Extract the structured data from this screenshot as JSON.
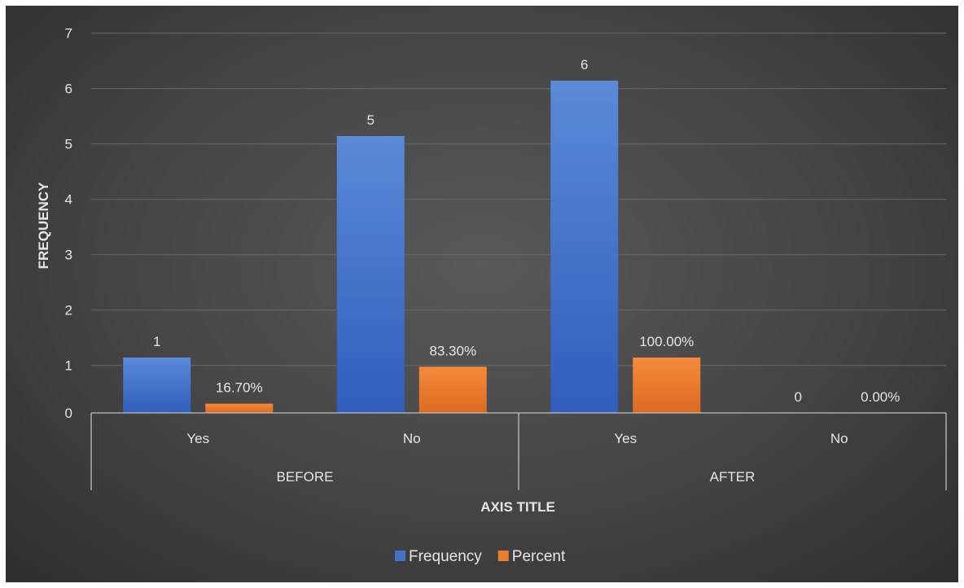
{
  "chart_data": {
    "type": "bar",
    "groups": [
      {
        "label": "BEFORE",
        "categories": [
          "Yes",
          "No"
        ]
      },
      {
        "label": "AFTER",
        "categories": [
          "Yes",
          "No"
        ]
      }
    ],
    "categories": [
      "Yes",
      "No",
      "Yes",
      "No"
    ],
    "series": [
      {
        "name": "Frequency",
        "values": [
          1,
          5,
          6,
          0
        ],
        "labels": [
          "1",
          "5",
          "6",
          "0"
        ],
        "color": "#4472C4"
      },
      {
        "name": "Percent",
        "values": [
          0.167,
          0.833,
          1.0,
          0.0
        ],
        "labels": [
          "16.70%",
          "83.30%",
          "100.00%",
          "0.00%"
        ],
        "color": "#ED7D31"
      }
    ],
    "yticks": [
      "0",
      "1",
      "2",
      "3",
      "4",
      "5",
      "6",
      "7"
    ],
    "ytick_values": [
      0,
      0.857,
      1.857,
      2.857,
      3.857,
      4.857,
      5.857,
      6.857
    ],
    "ylim": [
      0,
      7
    ],
    "xlabel": "AXIS TITLE",
    "ylabel": "FREQUENCY",
    "grid": true,
    "legend_position": "bottom"
  }
}
